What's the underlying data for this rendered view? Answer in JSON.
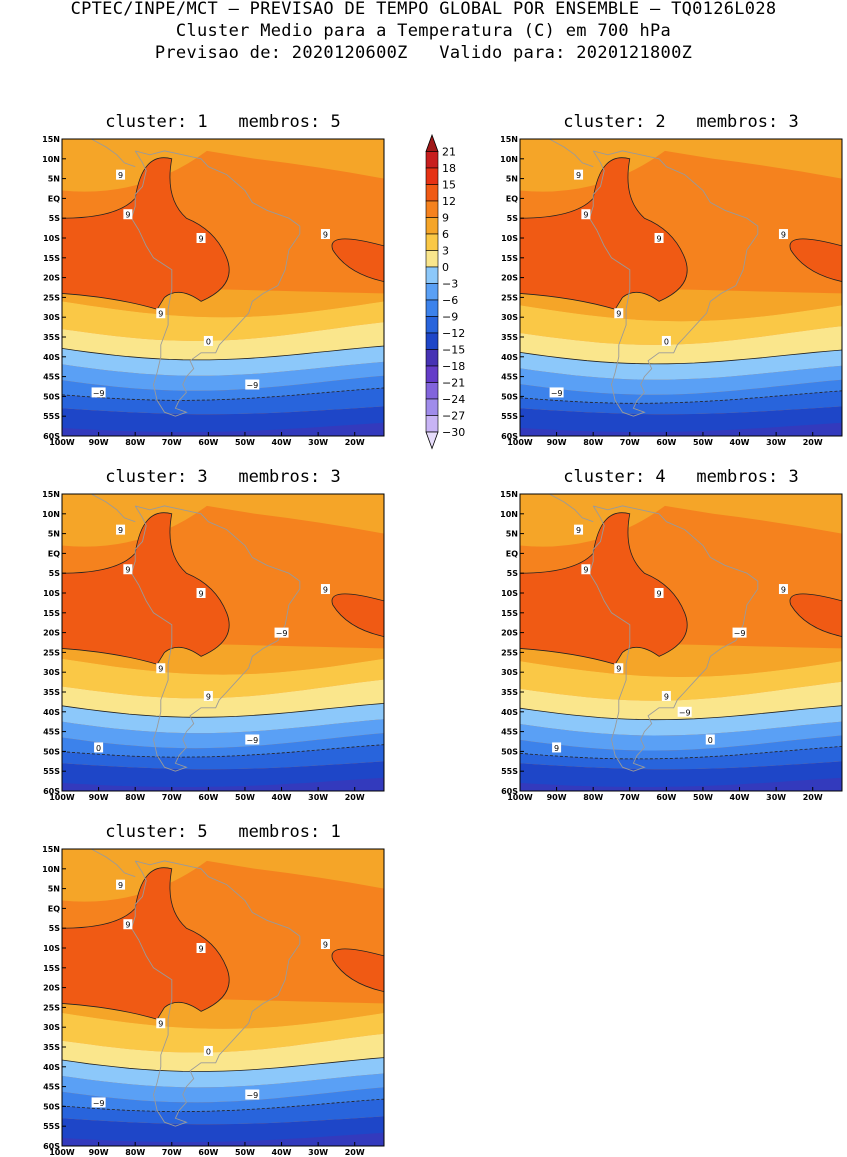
{
  "header": {
    "line1": "CPTEC/INPE/MCT – PREVISAO DE TEMPO GLOBAL POR ENSEMBLE – TQ0126L028",
    "line2": "Cluster Medio para a Temperatura (C) em 700 hPa",
    "line3": "Previsao de: 2020120600Z   Valido para: 2020121800Z"
  },
  "axes": {
    "lat_labels": [
      "15N",
      "10N",
      "5N",
      "EQ",
      "5S",
      "10S",
      "15S",
      "20S",
      "25S",
      "30S",
      "35S",
      "40S",
      "45S",
      "50S",
      "55S",
      "60S"
    ],
    "lon_labels": [
      "100W",
      "90W",
      "80W",
      "70W",
      "60W",
      "50W",
      "40W",
      "30W",
      "20W"
    ]
  },
  "legend": {
    "labels": [
      "21",
      "18",
      "15",
      "12",
      "9",
      "6",
      "3",
      "0",
      "-3",
      "-6",
      "-9",
      "-12",
      "-15",
      "-18",
      "-21",
      "-24",
      "-27",
      "-30"
    ],
    "colors": [
      "#a01818",
      "#c81e1e",
      "#e63214",
      "#f05a14",
      "#f5821e",
      "#f5a528",
      "#fac846",
      "#fae68c",
      "#8cc8fa",
      "#5aa0f5",
      "#3c82eb",
      "#2864dc",
      "#1e46c8",
      "#4632b4",
      "#643cc8",
      "#8264dc",
      "#a08ceb",
      "#c8b4f5",
      "#e6dcfa"
    ]
  },
  "panels": [
    {
      "title": "cluster: 1   membros: 5",
      "contours": [
        {
          "label": "9"
        },
        {
          "label": "9"
        },
        {
          "label": "9"
        },
        {
          "label": "9"
        },
        {
          "label": "9"
        },
        {
          "label": "0"
        },
        {
          "label": "−9"
        },
        {
          "label": "−9"
        }
      ]
    },
    {
      "title": "cluster: 2   membros: 3",
      "contours": [
        {
          "label": "9"
        },
        {
          "label": "9"
        },
        {
          "label": "9"
        },
        {
          "label": "9"
        },
        {
          "label": "9"
        },
        {
          "label": "0"
        },
        {
          "label": "−9"
        }
      ]
    },
    {
      "title": "cluster: 3   membros: 3",
      "contours": [
        {
          "label": "9"
        },
        {
          "label": "9"
        },
        {
          "label": "9"
        },
        {
          "label": "9"
        },
        {
          "label": "9"
        },
        {
          "label": "9"
        },
        {
          "label": "0"
        },
        {
          "label": "−9"
        },
        {
          "label": "−9"
        }
      ]
    },
    {
      "title": "cluster: 4   membros: 3",
      "contours": [
        {
          "label": "9"
        },
        {
          "label": "9"
        },
        {
          "label": "9"
        },
        {
          "label": "9"
        },
        {
          "label": "9"
        },
        {
          "label": "9"
        },
        {
          "label": "9"
        },
        {
          "label": "0"
        },
        {
          "label": "−9"
        },
        {
          "label": "−9"
        }
      ]
    },
    {
      "title": "cluster: 5   membros: 1",
      "contours": [
        {
          "label": "9"
        },
        {
          "label": "9"
        },
        {
          "label": "9"
        },
        {
          "label": "9"
        },
        {
          "label": "9"
        },
        {
          "label": "0"
        },
        {
          "label": "−9"
        },
        {
          "label": "−9"
        }
      ]
    }
  ]
}
